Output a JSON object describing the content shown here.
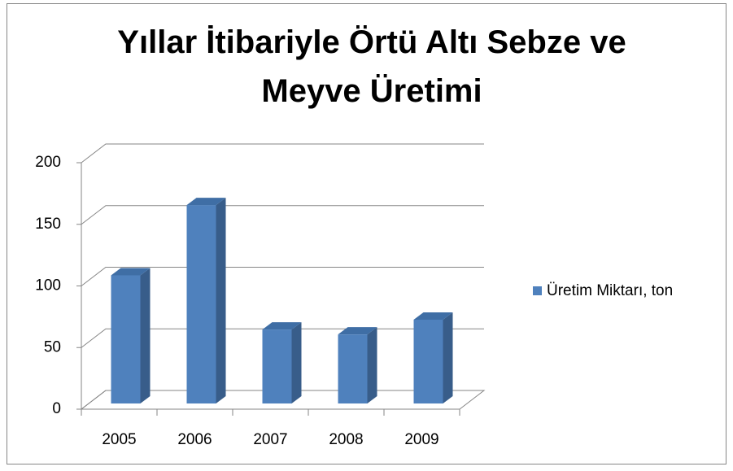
{
  "chart_data": {
    "type": "bar",
    "title": "Yıllar İtibariyle Örtü Altı Sebze ve Meyve Üretimi",
    "categories": [
      "2005",
      "2006",
      "2007",
      "2008",
      "2009"
    ],
    "series": [
      {
        "name": "Üretim Miktarı, ton",
        "color": "#4f81bd",
        "values": [
          104,
          161,
          60,
          56,
          68
        ]
      }
    ],
    "ylim": [
      0,
      200
    ],
    "yticks": [
      0,
      50,
      100,
      150,
      200
    ],
    "grid": true,
    "legend": "right"
  }
}
